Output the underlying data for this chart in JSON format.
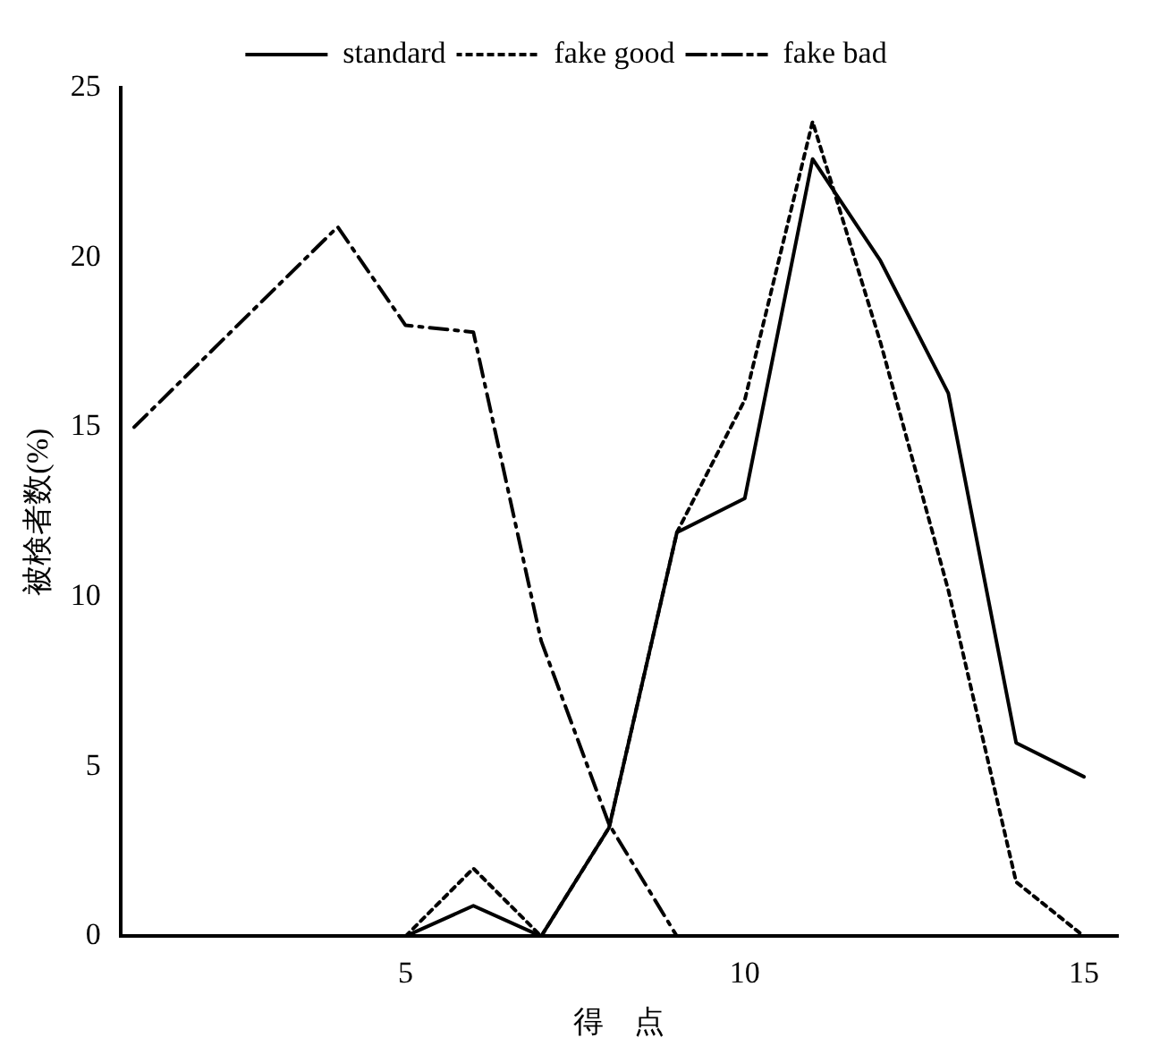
{
  "chart_data": {
    "type": "line",
    "xlabel": "得　点",
    "ylabel": "被検者数(%)",
    "xlim": [
      0.8,
      15.5
    ],
    "xticks": [
      5,
      10,
      15
    ],
    "ylim": [
      0,
      25
    ],
    "yticks": [
      0,
      5,
      10,
      15,
      20,
      25
    ],
    "grid": false,
    "legend": "top",
    "marker": "none",
    "series": [
      {
        "name": "standard",
        "color": "#000000",
        "line_style": "solid",
        "x": [
          5,
          6,
          7,
          8,
          9,
          10,
          11,
          12,
          13,
          14,
          15
        ],
        "values": [
          0,
          0.9,
          0,
          3.2,
          11.9,
          12.9,
          22.9,
          19.9,
          16,
          5.7,
          4.7
        ]
      },
      {
        "name": "fake good",
        "color": "#000000",
        "line_style": "dotted",
        "x": [
          5,
          6,
          7,
          8,
          9,
          10,
          11,
          12,
          13,
          14,
          15
        ],
        "values": [
          0,
          2,
          0,
          3.2,
          11.9,
          15.8,
          24,
          17.5,
          10.2,
          1.6,
          0
        ]
      },
      {
        "name": "fake bad",
        "color": "#000000",
        "line_style": "dashdot",
        "x": [
          1,
          4,
          5,
          6,
          7,
          8,
          9
        ],
        "values": [
          15,
          20.9,
          18,
          17.8,
          8.7,
          3.3,
          0
        ]
      }
    ]
  }
}
